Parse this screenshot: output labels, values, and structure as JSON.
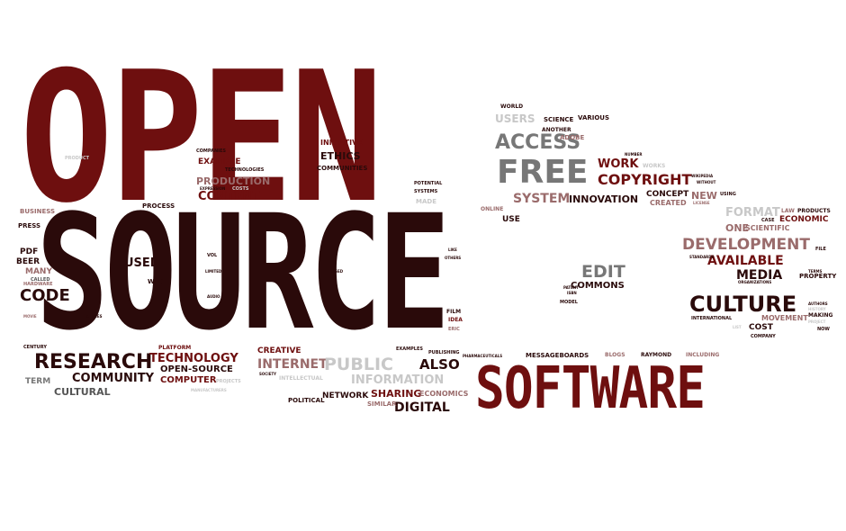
{
  "colors": {
    "maroon": "#6e0f0f",
    "dark_brown": "#2a0a0a",
    "gray": "#8f8f8f",
    "light_gray": "#c8c8c8",
    "mauve": "#9a6b6b",
    "pale": "#e3d6d6"
  },
  "words": {
    "open": "OPEN",
    "source": "SOURCE",
    "software": "SOFTWARE",
    "free": "FREE",
    "access": "ACCESS",
    "copyright": "COPYRIGHT",
    "culture": "CULTURE",
    "research": "RESEARCH",
    "development": "DEVELOPMENT",
    "available": "AVAILABLE",
    "media": "MEDIA",
    "edit": "EDIT",
    "commons": "COMMONS",
    "production": "PRODUCTION",
    "content": "CONTENT",
    "example": "EXAMPLE",
    "ethics": "ETHICS",
    "initiative": "INITIATIVE",
    "communities": "COMMUNITIES",
    "technology": "TECHNOLOGY",
    "open_source": "OPEN-SOURCE",
    "computer": "COMPUTER",
    "community": "COMMUNITY",
    "cultural": "CULTURAL",
    "internet": "INTERNET",
    "public": "PUBLIC",
    "information": "INFORMATION",
    "also": "ALSO",
    "sharing": "SHARING",
    "digital": "DIGITAL",
    "code": "CODE",
    "used": "USED",
    "web": "WEB",
    "process": "PROCESS",
    "business": "BUSINESS",
    "press": "PRESS",
    "pdf": "PDF",
    "beer": "BEER",
    "many": "MANY",
    "term": "TERM",
    "system": "SYSTEM",
    "innovation": "INNOVATION",
    "work": "WORK",
    "users": "USERS",
    "science": "SCIENCE",
    "various": "VARIOUS",
    "world": "WORLD",
    "another": "ANOTHER",
    "adobe": "ADOBE",
    "concept": "CONCEPT",
    "created": "CREATED",
    "new": "NEW",
    "one": "ONE",
    "format": "FORMAT",
    "scientific": "SCIENTIFIC",
    "economic": "ECONOMIC",
    "products": "PRODUCTS",
    "property": "PROPERTY",
    "cost": "COST",
    "movement": "MOVEMENT",
    "making": "MAKING",
    "company": "COMPANY",
    "international": "INTERNATIONAL",
    "messageboards": "MESSAGEBOARDS",
    "blogs": "BLOGS",
    "raymond": "RAYMOND",
    "including": "INCLUDING",
    "network": "NETWORK",
    "political": "POLITICAL",
    "similar": "SIMILAR",
    "economics": "ECONOMICS",
    "creative": "CREATIVE",
    "platform": "PLATFORM",
    "use": "USE",
    "online": "ONLINE",
    "made": "MADE",
    "systems": "SYSTEMS",
    "potential": "POTENTIAL",
    "film": "FILM",
    "idea": "IDEA",
    "eric": "ERIC",
    "examples": "EXAMPLES",
    "publishing": "PUBLISHING",
    "pharmaceuticals": "PHARMACEUTICALS",
    "model": "MODEL",
    "law": "LAW",
    "case": "CASE",
    "file": "FILE",
    "standards": "STANDARDS",
    "organizations": "ORGANIZATIONS",
    "license": "LICENSE",
    "using": "USING",
    "wikipedia": "WIKIPEDIA",
    "without": "WITHOUT",
    "works": "WORKS",
    "number": "NUMBER",
    "companies": "COMPANIES",
    "technologies": "TECHNOLOGIES",
    "expression": "EXPRESSION",
    "costs": "COSTS",
    "product": "PRODUCT",
    "called": "CALLED",
    "hardware": "HARDWARE",
    "movie": "MOVIE",
    "licenses": "LICENSES",
    "century": "CENTURY",
    "intellectual": "INTELLECTUAL",
    "society": "SOCIETY",
    "projects": "PROJECTS",
    "manufacturers": "MANUFACTURERS",
    "vol": "VOL",
    "limited": "LIMITED",
    "audio": "AUDIO",
    "based": "BASED",
    "like": "LIKE",
    "others": "OTHERS",
    "isbn": "ISBN",
    "patent": "PATENT",
    "history": "HISTORY",
    "project": "PROJECT",
    "now": "NOW",
    "list": "LIST",
    "authors": "AUTHORS",
    "terms": "TERMS"
  }
}
